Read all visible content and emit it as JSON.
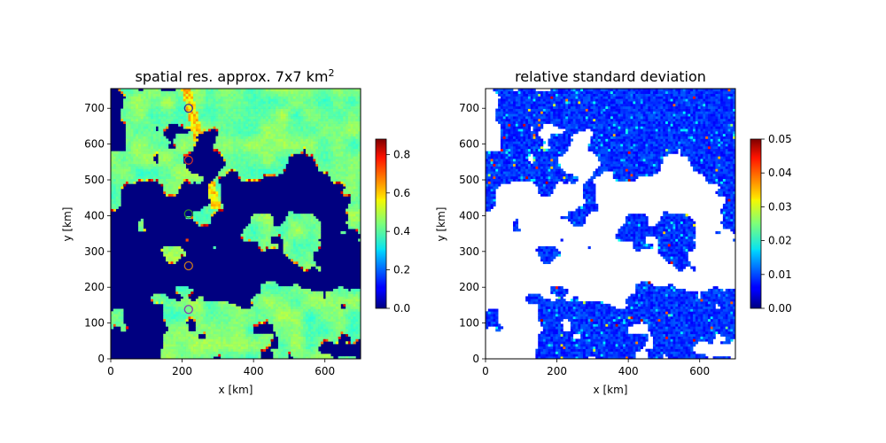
{
  "chart_data": [
    {
      "type": "heatmap",
      "title": "spatial res. approx. 7x7 km",
      "title_superscript": "2",
      "xlabel": "x [km]",
      "ylabel": "y [km]",
      "xlim": [
        0,
        700
      ],
      "ylim": [
        0,
        755
      ],
      "xticks": [
        "0",
        "200",
        "400",
        "600"
      ],
      "yticks": [
        "0",
        "100",
        "200",
        "300",
        "400",
        "500",
        "600",
        "700"
      ],
      "colormap": "jet",
      "colorbar": {
        "min": 0.0,
        "max": 0.88,
        "ticks": [
          "0.0",
          "0.2",
          "0.4",
          "0.6",
          "0.8"
        ]
      },
      "background_value": 0.0,
      "markers": [
        {
          "x": 218,
          "y": 700,
          "color": "#3a2a9a"
        },
        {
          "x": 218,
          "y": 555,
          "color": "#c8322a"
        },
        {
          "x": 218,
          "y": 405,
          "color": "#2e8b2e"
        },
        {
          "x": 218,
          "y": 260,
          "color": "#c87820"
        },
        {
          "x": 218,
          "y": 138,
          "color": "#8a3ab0"
        }
      ]
    },
    {
      "type": "heatmap",
      "title": "relative standard deviation",
      "xlabel": "x [km]",
      "ylabel": "y [km]",
      "xlim": [
        0,
        700
      ],
      "ylim": [
        0,
        755
      ],
      "xticks": [
        "0",
        "200",
        "400",
        "600"
      ],
      "yticks": [
        "0",
        "100",
        "200",
        "300",
        "400",
        "500",
        "600",
        "700"
      ],
      "colormap": "jet",
      "colorbar": {
        "min": 0.0,
        "max": 0.05,
        "ticks": [
          "0.00",
          "0.01",
          "0.02",
          "0.03",
          "0.04",
          "0.05"
        ]
      },
      "background_value": null
    }
  ]
}
